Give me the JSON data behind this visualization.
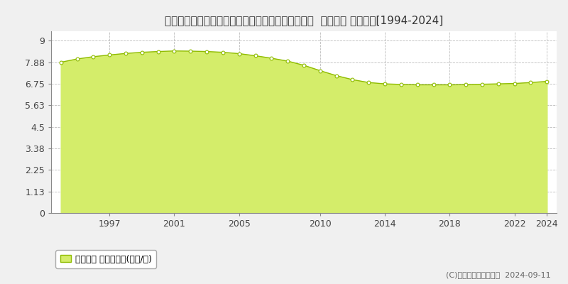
{
  "title": "山形県東置賜郡高畠町大字福沢字鎌塚台１５０番６  地価公示 地価推移[1994-2024]",
  "years": [
    1994,
    1995,
    1996,
    1997,
    1998,
    1999,
    2000,
    2001,
    2002,
    2003,
    2004,
    2005,
    2006,
    2007,
    2008,
    2009,
    2010,
    2011,
    2012,
    2013,
    2014,
    2015,
    2016,
    2017,
    2018,
    2019,
    2020,
    2021,
    2022,
    2023,
    2024
  ],
  "values": [
    7.88,
    8.05,
    8.17,
    8.26,
    8.34,
    8.4,
    8.44,
    8.47,
    8.46,
    8.44,
    8.4,
    8.33,
    8.22,
    8.09,
    7.94,
    7.72,
    7.44,
    7.18,
    6.97,
    6.82,
    6.75,
    6.72,
    6.7,
    6.7,
    6.7,
    6.71,
    6.73,
    6.75,
    6.77,
    6.82,
    6.88
  ],
  "line_color": "#8fbc00",
  "fill_color": "#d4ed6a",
  "fill_alpha": 1.0,
  "marker_color": "#ffffff",
  "marker_edge_color": "#8fbc00",
  "ytick_labels": [
    "0",
    "1.13",
    "2.25",
    "3.38",
    "4.5",
    "5.63",
    "6.75",
    "7.88",
    "9"
  ],
  "ytick_values": [
    0,
    1.13,
    2.25,
    3.38,
    4.5,
    5.63,
    6.75,
    7.88,
    9
  ],
  "ylim": [
    0,
    9.5
  ],
  "xlim": [
    1993.4,
    2024.6
  ],
  "xticks": [
    1997,
    2001,
    2005,
    2010,
    2014,
    2018,
    2022,
    2024
  ],
  "grid_color": "#bbbbbb",
  "chart_bg": "#ffffff",
  "fig_bg": "#f0f0f0",
  "legend_label": "地価公示 平均坪単価(万円/坪)",
  "copyright_text": "(C)土地価格ドットコム  2024-09-11",
  "title_fontsize": 11,
  "axis_fontsize": 9,
  "legend_fontsize": 9,
  "copyright_fontsize": 8
}
